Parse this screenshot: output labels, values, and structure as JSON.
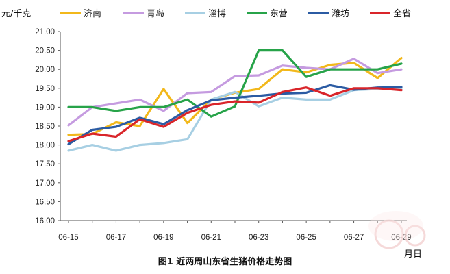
{
  "chart_data": {
    "type": "line",
    "title": "",
    "caption": "图1  近两周山东省生猪价格走势图",
    "ylabel": "元/千克",
    "xlabel": "月日",
    "ylim": [
      16.0,
      21.0
    ],
    "yticks": [
      "16.00",
      "16.50",
      "17.00",
      "17.50",
      "18.00",
      "18.50",
      "19.00",
      "19.50",
      "20.00",
      "20.50",
      "21.00"
    ],
    "categories": [
      "06-15",
      "06-16",
      "06-17",
      "06-18",
      "06-19",
      "06-20",
      "06-21",
      "06-22",
      "06-23",
      "06-24",
      "06-25",
      "06-26",
      "06-27",
      "06-28",
      "06-29"
    ],
    "xtick_labels": [
      "06-15",
      "06-17",
      "06-19",
      "06-21",
      "06-23",
      "06-25",
      "06-27",
      "06-29"
    ],
    "grid": false,
    "legend_position": "top",
    "series": [
      {
        "name": "济南",
        "color": "#F2B81B",
        "values": [
          18.27,
          18.29,
          18.6,
          18.5,
          19.48,
          18.58,
          19.2,
          19.38,
          19.48,
          20.0,
          19.92,
          20.12,
          20.17,
          19.77,
          20.3
        ]
      },
      {
        "name": "青岛",
        "color": "#C59BE0",
        "values": [
          18.52,
          19.0,
          19.1,
          19.2,
          18.9,
          19.37,
          19.4,
          19.82,
          19.84,
          20.1,
          20.04,
          20.0,
          20.28,
          19.9,
          20.0
        ]
      },
      {
        "name": "淄博",
        "color": "#A7CFE3",
        "values": [
          17.85,
          18.0,
          17.85,
          18.0,
          18.05,
          18.15,
          19.2,
          19.4,
          19.02,
          19.25,
          19.2,
          19.2,
          19.45,
          19.48,
          19.47
        ]
      },
      {
        "name": "东营",
        "color": "#27A349",
        "values": [
          19.0,
          19.0,
          18.9,
          19.0,
          19.0,
          19.2,
          18.75,
          19.02,
          20.5,
          20.5,
          19.8,
          20.0,
          20.0,
          20.0,
          20.15
        ]
      },
      {
        "name": "潍坊",
        "color": "#2B5BA3",
        "values": [
          18.02,
          18.4,
          18.48,
          18.72,
          18.55,
          18.92,
          19.18,
          19.25,
          19.3,
          19.36,
          19.38,
          19.58,
          19.46,
          19.52,
          19.53
        ]
      },
      {
        "name": "全省",
        "color": "#D9252A",
        "values": [
          18.1,
          18.3,
          18.22,
          18.68,
          18.48,
          18.85,
          19.06,
          19.15,
          19.12,
          19.4,
          19.52,
          19.3,
          19.5,
          19.5,
          19.45
        ]
      }
    ]
  }
}
